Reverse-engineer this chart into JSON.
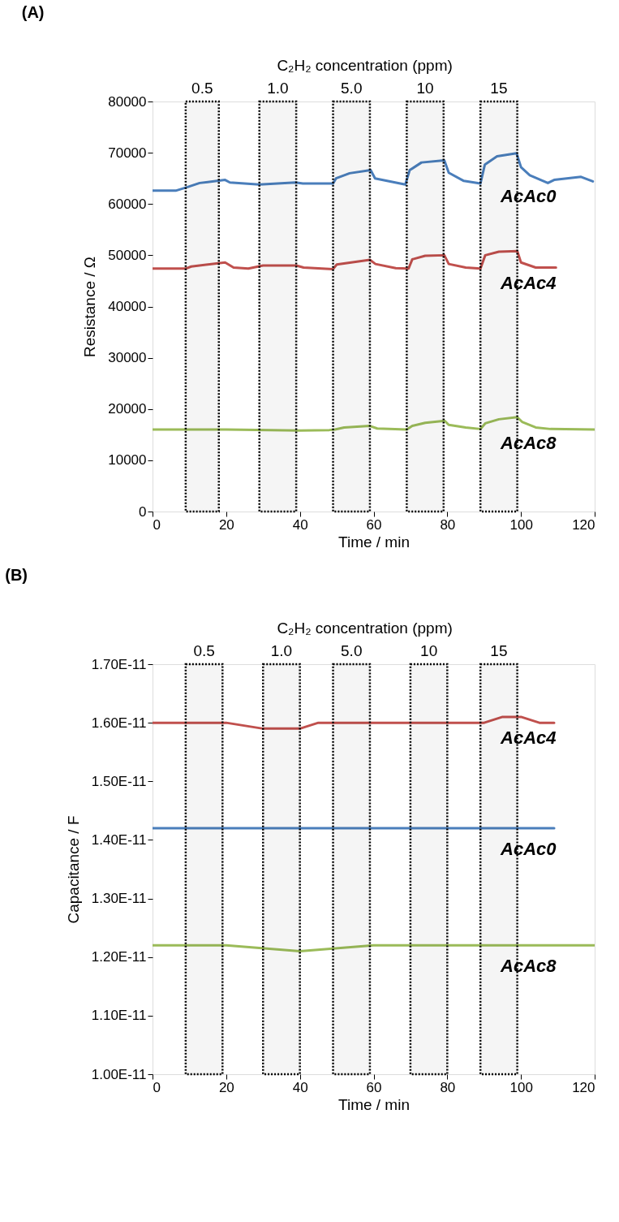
{
  "chart_data": [
    {
      "type": "line",
      "title": "(A)",
      "xlabel": "Time / min",
      "ylabel": "Resistance / Ω",
      "annotations": [
        "C₂H₂ concentration (ppm)"
      ],
      "xlim": [
        0,
        120
      ],
      "xticks": [
        0,
        20,
        40,
        60,
        80,
        100,
        120
      ],
      "ylim": [
        0,
        80000
      ],
      "yticks": [
        0,
        10000,
        20000,
        30000,
        40000,
        50000,
        60000,
        70000,
        80000
      ],
      "bands": [
        {
          "axis": "x",
          "from": 9,
          "to": 18,
          "label": "0.5"
        },
        {
          "axis": "x",
          "from": 29,
          "to": 39,
          "label": "1.0"
        },
        {
          "axis": "x",
          "from": 49,
          "to": 59,
          "label": "5.0"
        },
        {
          "axis": "x",
          "from": 69,
          "to": 79,
          "label": "10"
        },
        {
          "axis": "x",
          "from": 89,
          "to": 99,
          "label": "15"
        }
      ],
      "series": [
        {
          "name": "AcAc0",
          "color": "#4a7ebb",
          "x": [
            0,
            6.3,
            9.5,
            12.8,
            19.7,
            21,
            29,
            38.8,
            40.8,
            49,
            49.8,
            53.5,
            59.2,
            60.4,
            68.6,
            69.8,
            73,
            79.2,
            80.4,
            84.5,
            89,
            90.2,
            93.5,
            98.8,
            100,
            102.4,
            107.3,
            109,
            116.3,
            119.5
          ],
          "values": [
            62600,
            62600,
            63300,
            64100,
            64700,
            64200,
            63800,
            64200,
            64000,
            64000,
            65000,
            66000,
            66600,
            65000,
            63800,
            66600,
            68100,
            68500,
            66100,
            64500,
            64000,
            67700,
            69300,
            69900,
            67200,
            65600,
            64100,
            64700,
            65300,
            64400
          ]
        },
        {
          "name": "AcAc4",
          "color": "#c0504d",
          "x": [
            0,
            9,
            10.5,
            19.7,
            22,
            26,
            30,
            39,
            41,
            49,
            50,
            59,
            60.5,
            66,
            69.5,
            70.5,
            74,
            79.2,
            80.4,
            85,
            89,
            90.3,
            94,
            99,
            100,
            104,
            109.5
          ],
          "values": [
            47400,
            47400,
            47800,
            48600,
            47600,
            47400,
            48000,
            48000,
            47600,
            47300,
            48200,
            49100,
            48300,
            47500,
            47400,
            49200,
            49900,
            50000,
            48300,
            47600,
            47400,
            50000,
            50700,
            50800,
            48600,
            47600,
            47600
          ]
        },
        {
          "name": "AcAc8",
          "color": "#9bbb59",
          "x": [
            0,
            20,
            40,
            48,
            49.5,
            52,
            59,
            61,
            69,
            70.5,
            74,
            79.3,
            80.4,
            85,
            89,
            90.3,
            94,
            99,
            100.3,
            104,
            108,
            120
          ],
          "values": [
            16000,
            16000,
            15800,
            15900,
            16000,
            16400,
            16700,
            16200,
            16000,
            16700,
            17300,
            17700,
            16900,
            16400,
            16100,
            17200,
            18000,
            18400,
            17500,
            16400,
            16100,
            16000
          ]
        }
      ]
    },
    {
      "type": "line",
      "title": "(B)",
      "xlabel": "Time / min",
      "ylabel": "Capacitance / F",
      "annotations": [
        "C₂H₂ concentration (ppm)"
      ],
      "xlim": [
        0,
        120
      ],
      "xticks": [
        0,
        20,
        40,
        60,
        80,
        100,
        120
      ],
      "ylim": [
        1e-11,
        1.7e-11
      ],
      "yticks": [
        {
          "value": 1e-11,
          "label": "1.00E-11"
        },
        {
          "value": 1.1e-11,
          "label": "1.10E-11"
        },
        {
          "value": 1.2e-11,
          "label": "1.20E-11"
        },
        {
          "value": 1.3e-11,
          "label": "1.30E-11"
        },
        {
          "value": 1.4e-11,
          "label": "1.40E-11"
        },
        {
          "value": 1.5e-11,
          "label": "1.50E-11"
        },
        {
          "value": 1.6e-11,
          "label": "1.60E-11"
        },
        {
          "value": 1.7e-11,
          "label": "1.70E-11"
        }
      ],
      "bands": [
        {
          "axis": "x",
          "from": 9,
          "to": 19,
          "label": "0.5"
        },
        {
          "axis": "x",
          "from": 30,
          "to": 40,
          "label": "1.0"
        },
        {
          "axis": "x",
          "from": 49,
          "to": 59,
          "label": "5.0"
        },
        {
          "axis": "x",
          "from": 70,
          "to": 80,
          "label": "10"
        },
        {
          "axis": "x",
          "from": 89,
          "to": 99,
          "label": "15"
        }
      ],
      "series": [
        {
          "name": "AcAc4",
          "color": "#c0504d",
          "x": [
            0,
            10,
            15,
            20,
            30,
            35,
            40,
            45,
            50,
            60,
            70,
            80,
            90,
            95,
            100,
            105,
            109
          ],
          "values": [
            1.6e-11,
            1.6e-11,
            1.6e-11,
            1.6e-11,
            1.59e-11,
            1.59e-11,
            1.59e-11,
            1.6e-11,
            1.6e-11,
            1.6e-11,
            1.6e-11,
            1.6e-11,
            1.6e-11,
            1.61e-11,
            1.61e-11,
            1.6e-11,
            1.6e-11
          ]
        },
        {
          "name": "AcAc0",
          "color": "#4a7ebb",
          "x": [
            0,
            5,
            20,
            50,
            80,
            109
          ],
          "values": [
            1.42e-11,
            1.42e-11,
            1.42e-11,
            1.42e-11,
            1.42e-11,
            1.42e-11
          ]
        },
        {
          "name": "AcAc8",
          "color": "#9bbb59",
          "x": [
            0,
            20,
            40,
            60,
            80,
            100,
            120
          ],
          "values": [
            1.22e-11,
            1.22e-11,
            1.21e-11,
            1.22e-11,
            1.22e-11,
            1.22e-11,
            1.22e-11
          ]
        }
      ]
    }
  ]
}
